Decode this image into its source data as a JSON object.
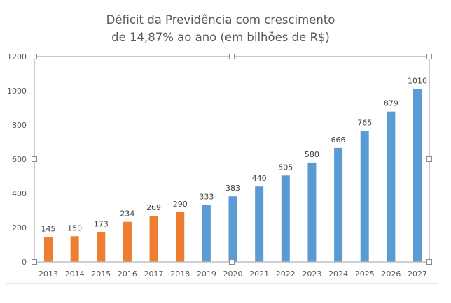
{
  "chart_data": {
    "type": "bar",
    "title_line1": "Déficit da Previdência com crescimento",
    "title_line2": "de 14,87% ao ano (em bilhões de R$)",
    "categories": [
      "2013",
      "2014",
      "2015",
      "2016",
      "2017",
      "2018",
      "2019",
      "2020",
      "2021",
      "2022",
      "2023",
      "2024",
      "2025",
      "2026",
      "2027"
    ],
    "values": [
      145,
      150,
      173,
      234,
      269,
      290,
      333,
      383,
      440,
      505,
      580,
      666,
      765,
      879,
      1010
    ],
    "series_split": {
      "historical_until": "2018"
    },
    "colors": {
      "historical": "#ED7D31",
      "projection": "#5B9BD5"
    },
    "ylim": [
      0,
      1200
    ],
    "yticks": [
      0,
      200,
      400,
      600,
      800,
      1000,
      1200
    ],
    "xlabel": "",
    "ylabel": "",
    "grid": false,
    "data_labels": true
  }
}
